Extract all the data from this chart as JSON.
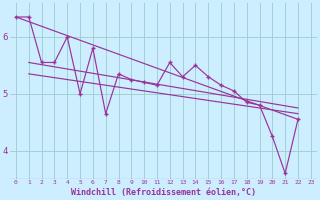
{
  "background_color": "#cceeff",
  "line_color": "#993399",
  "grid_color": "#99cccc",
  "xlabel": "Windchill (Refroidissement éolien,°C)",
  "xlabel_color": "#993399",
  "ylim": [
    3.5,
    6.6
  ],
  "xlim": [
    -0.5,
    23.5
  ],
  "yticks": [
    4,
    5,
    6
  ],
  "xticks": [
    0,
    1,
    2,
    3,
    4,
    5,
    6,
    7,
    8,
    9,
    10,
    11,
    12,
    13,
    14,
    15,
    16,
    17,
    18,
    19,
    20,
    21,
    22,
    23
  ],
  "series_main": {
    "x": [
      0,
      1,
      2,
      3,
      4,
      5,
      6,
      7,
      8,
      9,
      10,
      11,
      12,
      13,
      14,
      15,
      16,
      17,
      18,
      19,
      20,
      21,
      22
    ],
    "y": [
      6.35,
      6.35,
      5.55,
      5.55,
      6.0,
      5.0,
      5.8,
      4.65,
      5.35,
      5.25,
      5.2,
      5.15,
      5.55,
      5.3,
      5.5,
      5.3,
      5.15,
      5.05,
      4.85,
      4.8,
      4.25,
      3.6,
      4.55
    ]
  },
  "trend1": {
    "x": [
      0,
      22
    ],
    "y": [
      6.35,
      4.55
    ]
  },
  "trend2": {
    "x": [
      1,
      22
    ],
    "y": [
      5.55,
      4.75
    ]
  },
  "trend3": {
    "x": [
      1,
      22
    ],
    "y": [
      5.35,
      4.65
    ]
  }
}
